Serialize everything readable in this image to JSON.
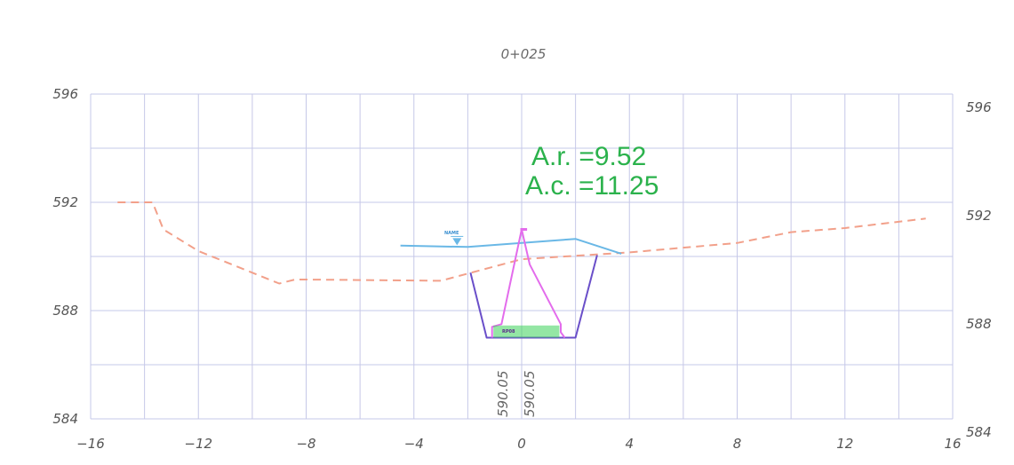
{
  "section": {
    "title": "0+025",
    "areas": {
      "ar": "A.r. =9.52",
      "ac": "A.c. =11.25"
    },
    "elevation_labels": [
      "590.05",
      "590.05"
    ],
    "water_tag": "NAME",
    "bottom_tag": "RP08",
    "colors": {
      "grid": "#c6c8e8",
      "ground": "#f2a08a",
      "water": "#6ab8e6",
      "excavation": "#6a4fc9",
      "structure": "#e36cec",
      "bottom_fill": "#3dd15a",
      "area_text": "#2bb24c"
    }
  },
  "chart_data": {
    "type": "line",
    "title": "0+025",
    "xlabel": "",
    "ylabel": "",
    "xlim": [
      -16,
      16
    ],
    "ylim": [
      584,
      596
    ],
    "x_ticks": [
      -16,
      -12,
      -8,
      -4,
      0,
      4,
      8,
      12,
      16
    ],
    "y_ticks": [
      584,
      588,
      592,
      596
    ],
    "x_tick_labels": [
      "−16",
      "−12",
      "−8",
      "−4",
      "0",
      "4",
      "8",
      "12",
      "16"
    ],
    "y_tick_labels": [
      "584",
      "588",
      "592",
      "596"
    ],
    "grid": true,
    "series": [
      {
        "key": "ground",
        "style": "dashed",
        "x": [
          -15,
          -13.7,
          -13.3,
          -12,
          -9,
          -8.4,
          -3,
          0,
          4,
          8,
          10,
          12,
          15
        ],
        "y": [
          592.0,
          592.0,
          591.0,
          590.2,
          589.0,
          589.15,
          589.1,
          589.9,
          590.15,
          590.5,
          590.9,
          591.05,
          591.4
        ]
      },
      {
        "key": "water",
        "style": "solid",
        "x": [
          -4.5,
          -2,
          2,
          3.7
        ],
        "y": [
          590.4,
          590.35,
          590.65,
          590.1
        ]
      },
      {
        "key": "excavation",
        "style": "solid",
        "x": [
          -1.9,
          -1.3,
          2.0,
          2.8
        ],
        "y": [
          589.4,
          587.0,
          587.0,
          590.05
        ]
      },
      {
        "key": "structure",
        "style": "solid",
        "x": [
          -1.1,
          -1.1,
          -0.75,
          0,
          0.3,
          1.45,
          1.45,
          1.6
        ],
        "y": [
          587.0,
          587.4,
          587.5,
          591.0,
          589.7,
          587.5,
          587.2,
          587.0
        ]
      },
      {
        "key": "structure_cap",
        "style": "solid",
        "x": [
          -0.05,
          0.2
        ],
        "y": [
          591.0,
          591.0
        ]
      }
    ],
    "annotations": [
      {
        "text": "A.r. =9.52",
        "x": 0.5,
        "y": 593.3
      },
      {
        "text": "A.c. =11.25",
        "x": 0.4,
        "y": 592.3
      }
    ]
  }
}
